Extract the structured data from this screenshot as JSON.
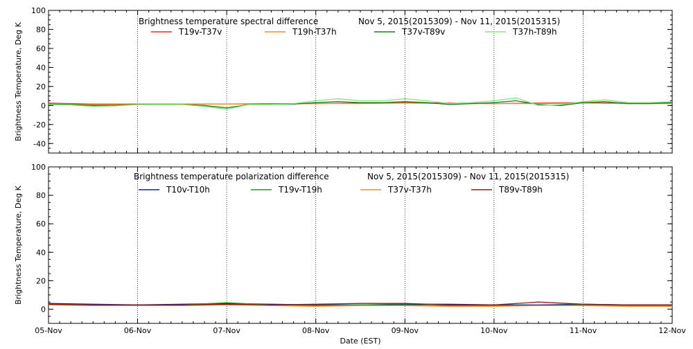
{
  "chart_data": [
    {
      "type": "line",
      "title": "Brightness temperature spectral difference",
      "date_range": "Nov  5, 2015(2015309) - Nov 11, 2015(2015315)",
      "ylabel": "Brightness Temperature, Deg K",
      "ylim": [
        -50,
        100
      ],
      "yticks": [
        -40,
        -20,
        0,
        20,
        40,
        60,
        80,
        100
      ],
      "xlim": [
        0,
        7
      ],
      "grid": "vertical dotted at day boundaries",
      "series": [
        {
          "name": "T19v-T37v",
          "color": "#e8281c",
          "x": [
            0,
            0.5,
            1,
            1.5,
            2,
            2.5,
            3,
            3.5,
            4,
            4.5,
            5,
            5.5,
            6,
            6.5,
            7
          ],
          "values": [
            2.5,
            1.5,
            1.5,
            1.5,
            1.5,
            2,
            2,
            2.5,
            3,
            2.5,
            2,
            2.5,
            3,
            2.5,
            2.5
          ]
        },
        {
          "name": "T19h-T37h",
          "color": "#f08a1c",
          "x": [
            0,
            0.5,
            1,
            1.5,
            2,
            2.5,
            3,
            3.5,
            4,
            4.5,
            5,
            5.5,
            6,
            6.5,
            7
          ],
          "values": [
            2,
            1,
            1,
            1.5,
            1.5,
            1.5,
            2,
            2,
            2.5,
            2,
            2,
            2,
            2.5,
            2,
            2
          ]
        },
        {
          "name": "T37v-T89v",
          "color": "#1c7a1c",
          "x": [
            0,
            0.25,
            0.5,
            0.75,
            1,
            1.25,
            1.5,
            1.75,
            2,
            2.25,
            2.5,
            2.75,
            3,
            3.25,
            3.5,
            3.75,
            4,
            4.25,
            4.5,
            4.75,
            5,
            5.25,
            5.5,
            5.75,
            6,
            6.25,
            6.5,
            6.75,
            7
          ],
          "values": [
            1.5,
            1,
            0,
            0,
            1,
            1,
            1,
            0,
            -2.5,
            1,
            1,
            1.5,
            3,
            4,
            3,
            3,
            4,
            3,
            1,
            2,
            3,
            5,
            1,
            0,
            3,
            4,
            2,
            2,
            3
          ]
        },
        {
          "name": "T37h-T89h",
          "color": "#7ee87e",
          "x": [
            0,
            0.25,
            0.5,
            0.75,
            1,
            1.25,
            1.5,
            1.75,
            2,
            2.25,
            2.5,
            2.75,
            3,
            3.25,
            3.5,
            3.75,
            4,
            4.25,
            4.5,
            4.75,
            5,
            5.25,
            5.5,
            5.75,
            6,
            6.25,
            6.5,
            6.75,
            7
          ],
          "values": [
            1,
            0.5,
            -1,
            -0.5,
            1,
            1,
            1,
            -1,
            -4,
            1,
            1,
            2,
            5,
            7,
            5,
            5,
            7,
            5,
            2,
            3,
            5,
            8,
            0,
            1,
            4,
            6,
            3,
            3,
            4
          ]
        }
      ]
    },
    {
      "type": "line",
      "title": "Brightness temperature polarization difference",
      "date_range": "Nov  5, 2015(2015309) - Nov 11, 2015(2015315)",
      "ylabel": "Brightness Temperature, Deg K",
      "xlabel": "Date (EST)",
      "ylim": [
        -10,
        100
      ],
      "yticks": [
        0,
        20,
        40,
        60,
        80,
        100
      ],
      "xlim": [
        0,
        7
      ],
      "xticks": [
        "05-Nov",
        "06-Nov",
        "07-Nov",
        "08-Nov",
        "09-Nov",
        "10-Nov",
        "11-Nov",
        "12-Nov"
      ],
      "grid": "vertical dotted at day boundaries",
      "series": [
        {
          "name": "T10v-T10h",
          "color": "#1c1c9a",
          "x": [
            0,
            0.5,
            1,
            1.5,
            2,
            2.5,
            3,
            3.5,
            4,
            4.5,
            5,
            5.5,
            6,
            6.5,
            7
          ],
          "values": [
            4,
            3.5,
            3,
            3.5,
            4,
            3.5,
            3,
            3,
            3.5,
            3.5,
            3,
            3,
            3.5,
            3,
            3
          ]
        },
        {
          "name": "T19v-T19h",
          "color": "#1c9a1c",
          "x": [
            0,
            0.5,
            1,
            1.5,
            2,
            2.5,
            3,
            3.5,
            4,
            4.5,
            5,
            5.5,
            6,
            6.5,
            7
          ],
          "values": [
            3.5,
            3,
            2.5,
            3,
            4.5,
            3,
            2.5,
            3,
            3,
            2.5,
            2.5,
            2.5,
            3,
            2.5,
            2.5
          ]
        },
        {
          "name": "T37v-T37h",
          "color": "#f08a1c",
          "x": [
            0,
            0.5,
            1,
            1.5,
            2,
            2.5,
            3,
            3.5,
            4,
            4.5,
            5,
            5.5,
            6,
            6.5,
            7
          ],
          "values": [
            3,
            2.5,
            2.5,
            2.5,
            3,
            2.5,
            2,
            2.5,
            2.5,
            2,
            2,
            2.5,
            2.5,
            2,
            2
          ]
        },
        {
          "name": "T89v-T89h",
          "color": "#8a1c1c",
          "x": [
            0,
            0.5,
            1,
            1.5,
            2,
            2.5,
            3,
            3.5,
            4,
            4.5,
            5,
            5.5,
            6,
            6.5,
            7
          ],
          "values": [
            3.5,
            3,
            3,
            3,
            3.5,
            3,
            3.5,
            4,
            4,
            3,
            3,
            5,
            3.5,
            3,
            3
          ]
        }
      ]
    }
  ]
}
